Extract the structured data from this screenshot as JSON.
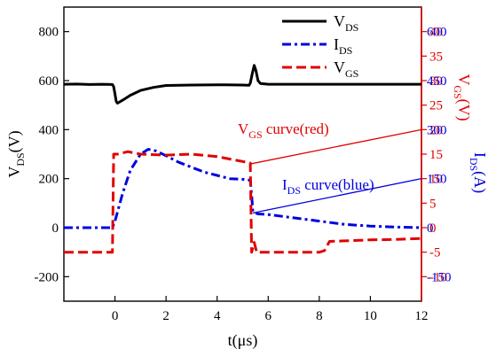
{
  "chart_data": {
    "type": "line",
    "x_axis": {
      "label": "t(μs)",
      "min": -2,
      "max": 12,
      "ticks": [
        0,
        2,
        4,
        6,
        8,
        10,
        12
      ]
    },
    "y_axes": {
      "left": {
        "label_main": "V",
        "label_sub": "DS",
        "label_tail": "(V)",
        "min": -300,
        "max": 900,
        "ticks": [
          -200,
          0,
          200,
          400,
          600,
          800
        ],
        "color": "#000000"
      },
      "right_vgs": {
        "label_main": "V",
        "label_sub": "GS",
        "label_tail": "(V)",
        "min": -15,
        "max": 45,
        "ticks": [
          -10,
          -5,
          0,
          5,
          10,
          15,
          20,
          25,
          30,
          35,
          40
        ],
        "color": "#e00000"
      },
      "right_ids": {
        "label_main": "I",
        "label_sub": "DS",
        "label_tail": "(A)",
        "min": -225,
        "max": 675,
        "ticks": [
          -150,
          0,
          150,
          300,
          450,
          600
        ],
        "color": "#0000e0"
      }
    },
    "series": [
      {
        "name_main": "V",
        "name_sub": "DS",
        "axis": "left",
        "color": "#000000",
        "style": "solid",
        "points": [
          [
            -2,
            585
          ],
          [
            -1.5,
            586
          ],
          [
            -1,
            584
          ],
          [
            -0.5,
            585
          ],
          [
            -0.1,
            584
          ],
          [
            -0.05,
            575
          ],
          [
            0,
            545
          ],
          [
            0.05,
            515
          ],
          [
            0.1,
            508
          ],
          [
            0.3,
            520
          ],
          [
            0.6,
            540
          ],
          [
            1,
            560
          ],
          [
            1.5,
            572
          ],
          [
            2,
            580
          ],
          [
            3,
            582
          ],
          [
            4,
            583
          ],
          [
            5,
            582
          ],
          [
            5.25,
            581
          ],
          [
            5.3,
            590
          ],
          [
            5.38,
            630
          ],
          [
            5.45,
            662
          ],
          [
            5.52,
            640
          ],
          [
            5.6,
            600
          ],
          [
            5.7,
            588
          ],
          [
            6,
            585
          ],
          [
            8,
            585
          ],
          [
            10,
            585
          ],
          [
            12,
            585
          ]
        ]
      },
      {
        "name_main": "I",
        "name_sub": "DS",
        "axis": "right_ids",
        "color": "#0000e0",
        "style": "dashdot",
        "points": [
          [
            -2,
            0
          ],
          [
            -0.1,
            0
          ],
          [
            0,
            20
          ],
          [
            0.3,
            105
          ],
          [
            0.6,
            175
          ],
          [
            1,
            225
          ],
          [
            1.3,
            240
          ],
          [
            1.6,
            235
          ],
          [
            2,
            220
          ],
          [
            2.5,
            200
          ],
          [
            3,
            185
          ],
          [
            3.5,
            170
          ],
          [
            4,
            160
          ],
          [
            4.5,
            150
          ],
          [
            5,
            148
          ],
          [
            5.3,
            145
          ],
          [
            5.35,
            100
          ],
          [
            5.4,
            48
          ],
          [
            5.6,
            42
          ],
          [
            6,
            40
          ],
          [
            7,
            30
          ],
          [
            8,
            20
          ],
          [
            9,
            10
          ],
          [
            10,
            5
          ],
          [
            11,
            2
          ],
          [
            12,
            0
          ]
        ]
      },
      {
        "name_main": "V",
        "name_sub": "GS",
        "axis": "right_vgs",
        "color": "#e00000",
        "style": "dashed",
        "points": [
          [
            -2,
            -5
          ],
          [
            -0.1,
            -5
          ],
          [
            -0.05,
            15
          ],
          [
            0.1,
            15
          ],
          [
            0.5,
            15.5
          ],
          [
            1,
            15
          ],
          [
            2,
            14.8
          ],
          [
            3,
            15
          ],
          [
            4,
            14.5
          ],
          [
            5,
            13.5
          ],
          [
            5.3,
            13.2
          ],
          [
            5.35,
            -5
          ],
          [
            5.45,
            -3
          ],
          [
            5.55,
            -5
          ],
          [
            6,
            -5
          ],
          [
            7,
            -5
          ],
          [
            8,
            -5
          ],
          [
            8.2,
            -4.7
          ],
          [
            8.4,
            -2.8
          ],
          [
            9,
            -2.7
          ],
          [
            10,
            -2.5
          ],
          [
            11,
            -2.4
          ],
          [
            12,
            -2.2
          ]
        ]
      }
    ],
    "annotations": [
      {
        "text_main": "V",
        "text_sub": "GS",
        "text_tail": " curve(red)",
        "color": "#e00000",
        "arrow_from": [
          5.3,
          13
        ],
        "arrow_to": [
          12,
          20
        ],
        "arrow_axis": "right_vgs"
      },
      {
        "text_main": "I",
        "text_sub": "DS",
        "text_tail": " curve(blue)",
        "color": "#0000e0",
        "arrow_from": [
          5.4,
          45
        ],
        "arrow_to": [
          12,
          150
        ],
        "arrow_axis": "right_ids"
      }
    ],
    "legend": {
      "position": "top-right"
    },
    "grid": false
  }
}
